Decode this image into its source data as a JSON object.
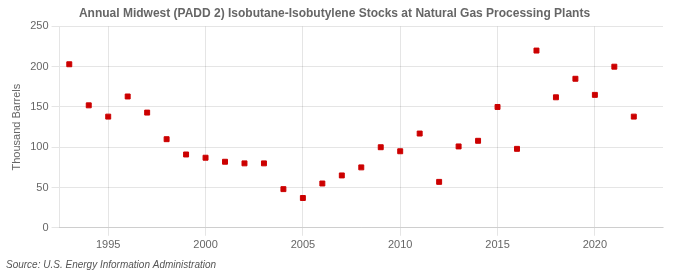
{
  "chart_data": {
    "type": "scatter",
    "title": "Annual Midwest (PADD 2) Isobutane-Isobutylene Stocks at Natural Gas Processing Plants",
    "ylabel": "Thousand Barrels",
    "annotations": [
      "Source: U.S. Energy Information Administration"
    ],
    "x": [
      1993,
      1994,
      1995,
      1996,
      1997,
      1998,
      1999,
      2000,
      2001,
      2002,
      2003,
      2004,
      2005,
      2006,
      2007,
      2008,
      2009,
      2010,
      2011,
      2012,
      2013,
      2014,
      2015,
      2016,
      2017,
      2018,
      2019,
      2020,
      2021,
      2022
    ],
    "values": [
      203,
      152,
      138,
      163,
      143,
      110,
      91,
      87,
      82,
      80,
      80,
      48,
      37,
      55,
      65,
      75,
      100,
      95,
      117,
      57,
      101,
      108,
      150,
      98,
      220,
      162,
      185,
      165,
      200,
      138
    ],
    "color": "#cc0000",
    "marker": "square",
    "xlim": [
      1992.5,
      2023.5
    ],
    "xticks": [
      1995,
      2000,
      2005,
      2010,
      2015,
      2020
    ],
    "ylim": [
      0,
      250
    ],
    "yticks": [
      0,
      50,
      100,
      150,
      200,
      250
    ],
    "grid": true
  }
}
